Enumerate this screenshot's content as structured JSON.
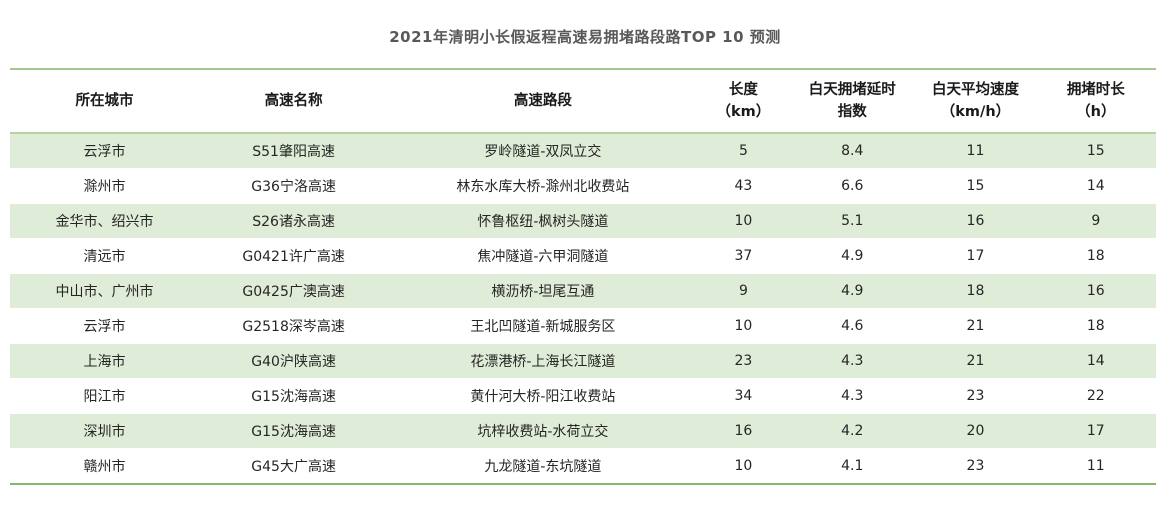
{
  "chart_data": {
    "type": "table",
    "title": "2021年清明小长假返程高速易拥堵路段路TOP 10 预测",
    "columns": [
      "所在城市",
      "高速名称",
      "高速路段",
      "长度（km）",
      "白天拥堵延时指数",
      "白天平均速度（km/h）",
      "拥堵时长（h）"
    ],
    "rows": [
      [
        "云浮市",
        "S51肇阳高速",
        "罗岭隧道-双凤立交",
        "5",
        "8.4",
        "11",
        "15"
      ],
      [
        "滁州市",
        "G36宁洛高速",
        "林东水库大桥-滁州北收费站",
        "43",
        "6.6",
        "15",
        "14"
      ],
      [
        "金华市、绍兴市",
        "S26诸永高速",
        "怀鲁枢纽-枫树头隧道",
        "10",
        "5.1",
        "16",
        "9"
      ],
      [
        "清远市",
        "G0421许广高速",
        "焦冲隧道-六甲洞隧道",
        "37",
        "4.9",
        "17",
        "18"
      ],
      [
        "中山市、广州市",
        "G0425广澳高速",
        "横沥桥-坦尾互通",
        "9",
        "4.9",
        "18",
        "16"
      ],
      [
        "云浮市",
        "G2518深岑高速",
        "王北凹隧道-新城服务区",
        "10",
        "4.6",
        "21",
        "18"
      ],
      [
        "上海市",
        "G40沪陕高速",
        "花漂港桥-上海长江隧道",
        "23",
        "4.3",
        "21",
        "14"
      ],
      [
        "阳江市",
        "G15沈海高速",
        "黄什河大桥-阳江收费站",
        "34",
        "4.3",
        "23",
        "22"
      ],
      [
        "深圳市",
        "G15沈海高速",
        "坑梓收费站-水荷立交",
        "16",
        "4.2",
        "20",
        "17"
      ],
      [
        "赣州市",
        "G45大广高速",
        "九龙隧道-东坑隧道",
        "10",
        "4.1",
        "23",
        "11"
      ]
    ]
  },
  "header_display": [
    {
      "line1": "所在城市",
      "line2": ""
    },
    {
      "line1": "高速名称",
      "line2": ""
    },
    {
      "line1": "高速路段",
      "line2": ""
    },
    {
      "line1": "长度",
      "line2": "（km）"
    },
    {
      "line1": "白天拥堵延时",
      "line2": "指数"
    },
    {
      "line1": "白天平均速度",
      "line2": "（km/h）"
    },
    {
      "line1": "拥堵时长",
      "line2": "（h）"
    }
  ],
  "column_widths_percent": [
    16.5,
    16.5,
    27,
    8,
    11,
    10.5,
    10.5
  ],
  "colors": {
    "table_top_border": "#a3c78c",
    "table_bottom_border": "#86b668",
    "header_divider": "#b7d2a6",
    "row_green": "#dfecd7",
    "title_gray": "#595959",
    "cell_text": "#262626"
  }
}
